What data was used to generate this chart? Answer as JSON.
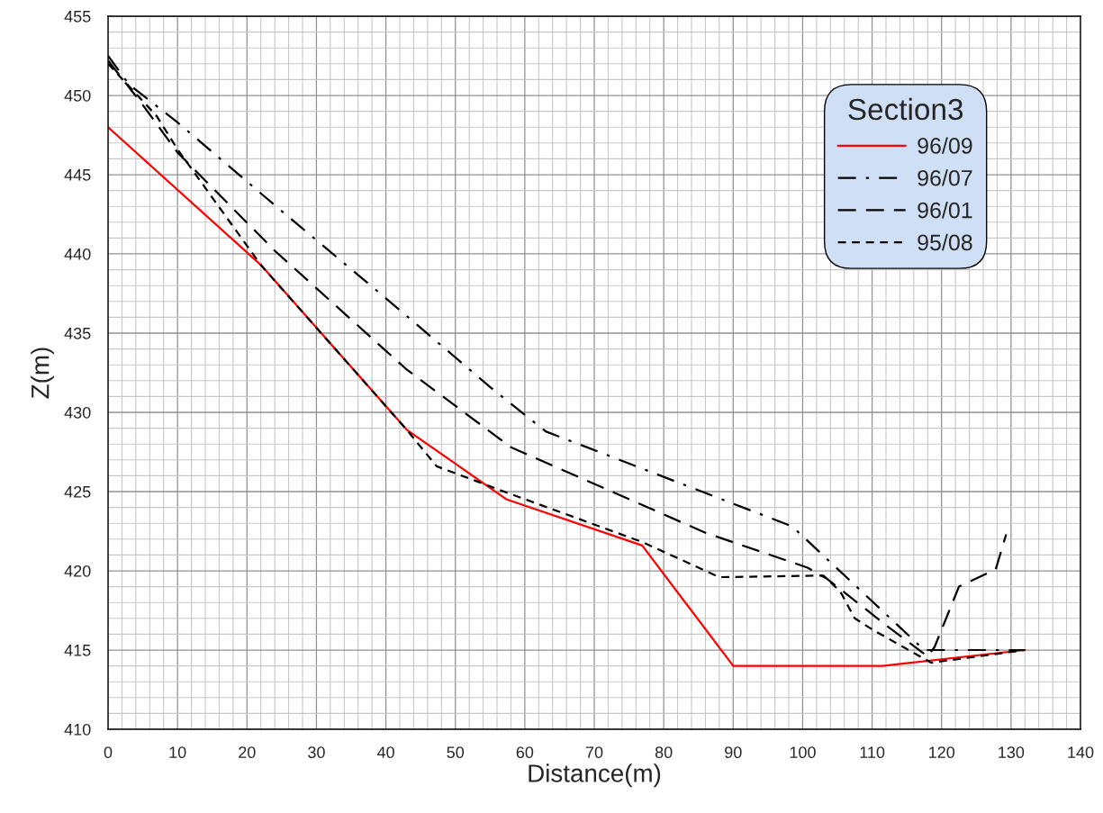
{
  "chart_data": {
    "type": "line",
    "xlabel": "Distance(m)",
    "ylabel": "Z(m)",
    "legend_title": "Section3",
    "xlim": [
      0,
      140
    ],
    "xticks": [
      0,
      10,
      20,
      30,
      40,
      50,
      60,
      70,
      80,
      90,
      100,
      110,
      120,
      130,
      140
    ],
    "ylim": [
      410,
      455
    ],
    "yticks": [
      410,
      415,
      420,
      425,
      430,
      435,
      440,
      445,
      450,
      455
    ],
    "grid": true,
    "legend": "top right",
    "marker": "none",
    "series": [
      {
        "name": "96/09",
        "color": "#ff0000",
        "line_style": "solid",
        "x": [
          0,
          22,
          43,
          57.4,
          76.9,
          90,
          111.5,
          132
        ],
        "values": [
          448,
          439.3,
          428.9,
          424.5,
          421.6,
          414,
          414,
          415
        ]
      },
      {
        "name": "96/07",
        "color": "#000000",
        "line_style": "dashdot",
        "x": [
          0,
          3,
          10,
          25,
          40,
          55,
          63,
          98.5,
          117.5,
          132
        ],
        "values": [
          452.5,
          450.7,
          448.3,
          442.7,
          437.2,
          431.6,
          428.8,
          422.8,
          415,
          415
        ]
      },
      {
        "name": "96/01",
        "color": "#000000",
        "line_style": "longdash",
        "x": [
          0,
          5,
          10,
          24,
          43,
          58,
          86,
          100.7,
          103.5,
          112.5,
          118,
          119,
          122.5,
          127.8,
          129.3
        ],
        "values": [
          452.2,
          449.4,
          446.4,
          440.2,
          432.7,
          427.8,
          422.4,
          420.2,
          419.5,
          416.4,
          414.6,
          415.2,
          419,
          420.1,
          422.3
        ]
      },
      {
        "name": "95/08",
        "color": "#000000",
        "line_style": "dashed",
        "x": [
          0,
          7,
          10,
          22,
          43,
          47.3,
          57,
          77,
          88,
          103,
          105.4,
          107.5,
          110,
          118.5,
          132
        ],
        "values": [
          452,
          448.7,
          446.6,
          439.3,
          428.9,
          426.6,
          425,
          421.8,
          419.6,
          419.7,
          418.7,
          417,
          416.3,
          414.2,
          415
        ]
      }
    ]
  }
}
